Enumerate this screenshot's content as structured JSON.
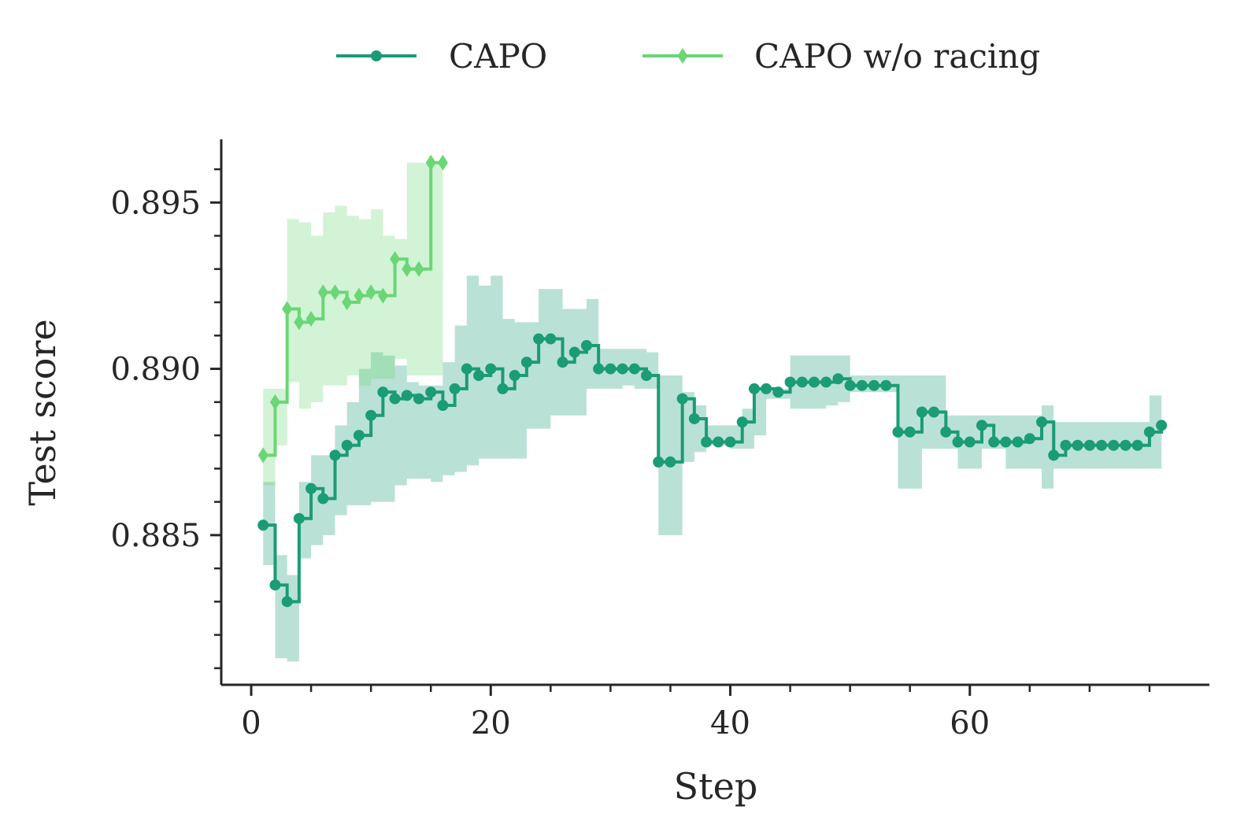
{
  "chart_data": {
    "type": "line",
    "title": "",
    "xlabel": "Step",
    "ylabel": "Test score",
    "xlim": [
      -2.5,
      80
    ],
    "ylim": [
      0.8805,
      0.8969
    ],
    "x_ticks": [
      0,
      20,
      40,
      60
    ],
    "x_tick_labels": [
      "0",
      "20",
      "40",
      "60"
    ],
    "x_minor_ticks": [
      5,
      10,
      15,
      25,
      30,
      35,
      45,
      50,
      55,
      65,
      70,
      75
    ],
    "y_ticks": [
      0.885,
      0.89,
      0.895
    ],
    "y_tick_labels": [
      "0.885",
      "0.890",
      "0.895"
    ],
    "y_minor_ticks": [
      0.881,
      0.882,
      0.883,
      0.884,
      0.886,
      0.887,
      0.888,
      0.889,
      0.891,
      0.892,
      0.893,
      0.894,
      0.896
    ],
    "grid": false,
    "legend_position": "top-center",
    "series": [
      {
        "name": "CAPO",
        "color": "#1a9c76",
        "marker": "circle",
        "x": [
          1,
          2,
          3,
          4,
          5,
          6,
          7,
          8,
          9,
          10,
          11,
          12,
          13,
          14,
          15,
          16,
          17,
          18,
          19,
          20,
          21,
          22,
          23,
          24,
          25,
          26,
          27,
          28,
          29,
          30,
          31,
          32,
          33,
          34,
          35,
          36,
          37,
          38,
          39,
          40,
          41,
          42,
          43,
          44,
          45,
          46,
          47,
          48,
          49,
          50,
          51,
          52,
          53,
          54,
          55,
          56,
          57,
          58,
          59,
          60,
          61,
          62,
          63,
          64,
          65,
          66,
          67,
          68,
          69,
          70,
          71,
          72,
          73,
          74,
          75,
          76
        ],
        "y": [
          0.8853,
          0.8835,
          0.883,
          0.8855,
          0.8864,
          0.8861,
          0.8874,
          0.8877,
          0.888,
          0.8886,
          0.8893,
          0.8891,
          0.8892,
          0.8891,
          0.8893,
          0.8889,
          0.8894,
          0.89,
          0.8898,
          0.89,
          0.8894,
          0.8898,
          0.8902,
          0.8909,
          0.8909,
          0.8902,
          0.8905,
          0.8907,
          0.89,
          0.89,
          0.89,
          0.89,
          0.8898,
          0.8872,
          0.8872,
          0.8891,
          0.8885,
          0.8878,
          0.8878,
          0.8878,
          0.8884,
          0.8894,
          0.8894,
          0.8893,
          0.8896,
          0.8896,
          0.8896,
          0.8896,
          0.8897,
          0.8895,
          0.8895,
          0.8895,
          0.8895,
          0.8881,
          0.8881,
          0.8887,
          0.8887,
          0.8881,
          0.8878,
          0.8878,
          0.8883,
          0.8878,
          0.8878,
          0.8878,
          0.8879,
          0.8884,
          0.8874,
          0.8877,
          0.8877,
          0.8877,
          0.8877,
          0.8877,
          0.8877,
          0.8877,
          0.8881,
          0.8883
        ],
        "lower": [
          0.8841,
          0.8813,
          0.8812,
          0.8843,
          0.8847,
          0.885,
          0.8856,
          0.8859,
          0.8859,
          0.886,
          0.886,
          0.8865,
          0.8867,
          0.8867,
          0.8866,
          0.8868,
          0.8869,
          0.8871,
          0.8873,
          0.8873,
          0.8873,
          0.8873,
          0.8882,
          0.8882,
          0.8886,
          0.8886,
          0.8886,
          0.8894,
          0.8894,
          0.8894,
          0.8895,
          0.8894,
          0.8894,
          0.885,
          0.885,
          0.8872,
          0.8875,
          0.8877,
          0.8877,
          0.8876,
          0.8876,
          0.888,
          0.8891,
          0.8891,
          0.8888,
          0.8888,
          0.8888,
          0.8889,
          0.889,
          0.8893,
          0.8893,
          0.8893,
          0.8893,
          0.8864,
          0.8864,
          0.8876,
          0.8876,
          0.8876,
          0.887,
          0.887,
          0.8876,
          0.8876,
          0.887,
          0.887,
          0.887,
          0.8864,
          0.887,
          0.887,
          0.887,
          0.887,
          0.887,
          0.887,
          0.887,
          0.887,
          0.887,
          0.887
        ],
        "upper": [
          0.8866,
          0.8844,
          0.8838,
          0.8866,
          0.8874,
          0.8874,
          0.8883,
          0.889,
          0.89,
          0.8905,
          0.8904,
          0.8901,
          0.8896,
          0.8895,
          0.8895,
          0.8902,
          0.8913,
          0.8928,
          0.8925,
          0.8928,
          0.8915,
          0.8914,
          0.8914,
          0.8924,
          0.8924,
          0.8918,
          0.8918,
          0.8921,
          0.8906,
          0.8906,
          0.8906,
          0.8906,
          0.8905,
          0.8898,
          0.8898,
          0.8893,
          0.8889,
          0.8883,
          0.8883,
          0.8883,
          0.8888,
          0.8894,
          0.8894,
          0.8894,
          0.8904,
          0.8904,
          0.8904,
          0.8904,
          0.8904,
          0.8898,
          0.8898,
          0.8898,
          0.8898,
          0.8898,
          0.8898,
          0.8898,
          0.8898,
          0.8886,
          0.8886,
          0.8886,
          0.8886,
          0.8886,
          0.8886,
          0.8886,
          0.8886,
          0.8889,
          0.8884,
          0.8884,
          0.8884,
          0.8884,
          0.8884,
          0.8884,
          0.8884,
          0.8884,
          0.8892,
          0.8892
        ]
      },
      {
        "name": "CAPO w/o racing",
        "color": "#6ad675",
        "marker": "diamond",
        "x": [
          1,
          2,
          3,
          4,
          5,
          6,
          7,
          8,
          9,
          10,
          11,
          12,
          13,
          14,
          15,
          16
        ],
        "y": [
          0.8874,
          0.889,
          0.8918,
          0.8914,
          0.8915,
          0.8923,
          0.8923,
          0.892,
          0.8922,
          0.8923,
          0.8922,
          0.8933,
          0.893,
          0.893,
          0.8962,
          0.8962
        ],
        "lower": [
          0.8865,
          0.8877,
          0.8896,
          0.8888,
          0.889,
          0.8895,
          0.8895,
          0.8898,
          0.8895,
          0.8897,
          0.8897,
          0.8903,
          0.8898,
          0.8898,
          0.8898,
          0.8898
        ],
        "upper": [
          0.8894,
          0.8894,
          0.8945,
          0.8944,
          0.894,
          0.8947,
          0.8949,
          0.8946,
          0.8945,
          0.8948,
          0.894,
          0.8939,
          0.8962,
          0.8962,
          0.8962,
          0.8962
        ]
      }
    ]
  }
}
